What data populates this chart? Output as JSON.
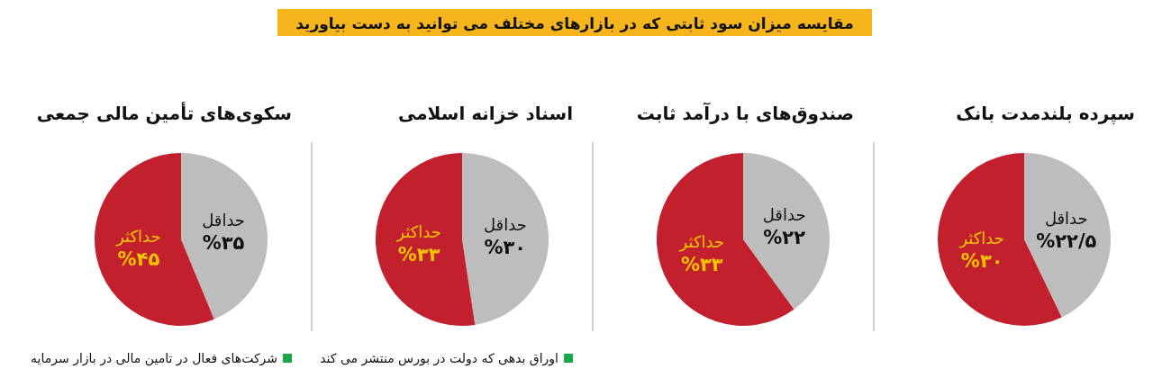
{
  "chart_data": [
    {
      "type": "pie",
      "title": "سپرده بلندمدت بانک",
      "categories": [
        "حداقل",
        "حداکثر"
      ],
      "values": [
        22.5,
        30
      ],
      "colors": [
        "#bdbdbd",
        "#c1202c"
      ],
      "value_labels": [
        "%۲۲/۵",
        "%۳۰"
      ],
      "annotations": [
        "مقایسه میزان سود ثابتی که در بازارهای مختلف می توانید به دست بیاورید"
      ]
    },
    {
      "type": "pie",
      "title": "صندوق‌های با درآمد ثابت",
      "categories": [
        "حداقل",
        "حداکثر"
      ],
      "values": [
        22,
        33
      ],
      "colors": [
        "#bdbdbd",
        "#c1202c"
      ],
      "value_labels": [
        "%۲۲",
        "%۳۳"
      ]
    },
    {
      "type": "pie",
      "title": "اسناد خزانه اسلامی",
      "categories": [
        "حداقل",
        "حداکثر"
      ],
      "values": [
        30,
        33
      ],
      "colors": [
        "#bdbdbd",
        "#c1202c"
      ],
      "value_labels": [
        "%۳۰",
        "%۳۳"
      ],
      "annotations": [
        "اوراق بدهی که دولت در بورس منتشر می کند"
      ]
    },
    {
      "type": "pie",
      "title": "سکوی‌های تأمین مالی جمعی",
      "categories": [
        "حداقل",
        "حداکثر"
      ],
      "values": [
        35,
        45
      ],
      "colors": [
        "#bdbdbd",
        "#c1202c"
      ],
      "value_labels": [
        "%۳۵",
        "%۴۵"
      ],
      "annotations": [
        "شرکت‌های فعال در تامین مالی در بازار سرمایه"
      ]
    }
  ]
}
